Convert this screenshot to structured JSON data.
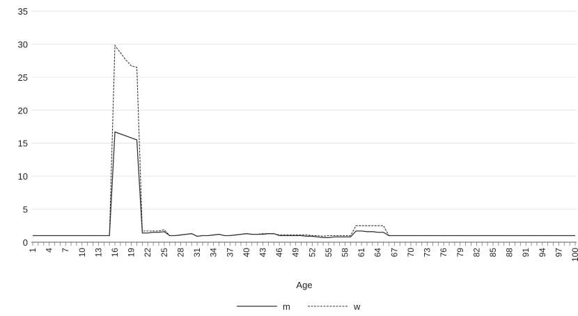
{
  "chart_data": {
    "type": "line",
    "xlabel": "Age",
    "ylabel": "",
    "title": "",
    "xlim": [
      1,
      100
    ],
    "ylim": [
      0,
      35
    ],
    "y_ticks": [
      0,
      5,
      10,
      15,
      20,
      25,
      30,
      35
    ],
    "x_tick_labels": [
      "1",
      "4",
      "7",
      "10",
      "13",
      "16",
      "19",
      "22",
      "25",
      "28",
      "31",
      "34",
      "37",
      "40",
      "43",
      "46",
      "49",
      "52",
      "55",
      "58",
      "61",
      "64",
      "67",
      "70",
      "73",
      "76",
      "79",
      "82",
      "85",
      "88",
      "91",
      "94",
      "97",
      "100"
    ],
    "grid": "horizontal",
    "legend_position": "bottom",
    "series": [
      {
        "name": "m",
        "style": "solid",
        "color": "#333333",
        "points": [
          [
            1,
            1
          ],
          [
            15,
            1
          ],
          [
            16,
            16.7
          ],
          [
            18,
            16.1
          ],
          [
            19,
            15.8
          ],
          [
            20,
            15.5
          ],
          [
            21,
            1.4
          ],
          [
            22,
            1.4
          ],
          [
            23,
            1.5
          ],
          [
            24,
            1.5
          ],
          [
            25,
            1.6
          ],
          [
            26,
            1.0
          ],
          [
            27,
            1.0
          ],
          [
            28,
            1.1
          ],
          [
            29,
            1.2
          ],
          [
            30,
            1.3
          ],
          [
            31,
            0.9
          ],
          [
            32,
            1.0
          ],
          [
            33,
            1.0
          ],
          [
            34,
            1.1
          ],
          [
            35,
            1.2
          ],
          [
            36,
            1.0
          ],
          [
            37,
            1.0
          ],
          [
            38,
            1.1
          ],
          [
            39,
            1.2
          ],
          [
            40,
            1.3
          ],
          [
            41,
            1.2
          ],
          [
            42,
            1.2
          ],
          [
            43,
            1.2
          ],
          [
            44,
            1.3
          ],
          [
            45,
            1.3
          ],
          [
            46,
            1.0
          ],
          [
            47,
            1.0
          ],
          [
            48,
            1.0
          ],
          [
            49,
            1.0
          ],
          [
            50,
            1.0
          ],
          [
            51,
            0.9
          ],
          [
            52,
            0.9
          ],
          [
            53,
            0.8
          ],
          [
            54,
            0.7
          ],
          [
            55,
            0.7
          ],
          [
            56,
            0.8
          ],
          [
            57,
            0.8
          ],
          [
            58,
            0.8
          ],
          [
            59,
            0.8
          ],
          [
            60,
            1.7
          ],
          [
            61,
            1.7
          ],
          [
            62,
            1.6
          ],
          [
            63,
            1.6
          ],
          [
            64,
            1.5
          ],
          [
            65,
            1.5
          ],
          [
            66,
            1
          ],
          [
            100,
            1
          ]
        ]
      },
      {
        "name": "w",
        "style": "dashed",
        "color": "#333333",
        "points": [
          [
            1,
            1
          ],
          [
            15,
            1
          ],
          [
            16,
            29.8
          ],
          [
            18,
            27.6
          ],
          [
            19,
            26.7
          ],
          [
            20,
            26.5
          ],
          [
            21,
            1.7
          ],
          [
            22,
            1.7
          ],
          [
            23,
            1.7
          ],
          [
            24,
            1.7
          ],
          [
            25,
            1.9
          ],
          [
            26,
            1.0
          ],
          [
            27,
            1.0
          ],
          [
            28,
            1.1
          ],
          [
            29,
            1.2
          ],
          [
            30,
            1.3
          ],
          [
            31,
            0.9
          ],
          [
            32,
            1.0
          ],
          [
            33,
            1.0
          ],
          [
            34,
            1.1
          ],
          [
            35,
            1.2
          ],
          [
            36,
            1.0
          ],
          [
            37,
            1.0
          ],
          [
            38,
            1.1
          ],
          [
            39,
            1.2
          ],
          [
            40,
            1.3
          ],
          [
            41,
            1.2
          ],
          [
            42,
            1.2
          ],
          [
            43,
            1.3
          ],
          [
            44,
            1.3
          ],
          [
            45,
            1.3
          ],
          [
            46,
            1.1
          ],
          [
            47,
            1.1
          ],
          [
            48,
            1.1
          ],
          [
            49,
            1.1
          ],
          [
            50,
            1.1
          ],
          [
            51,
            1.1
          ],
          [
            52,
            1.0
          ],
          [
            53,
            1.0
          ],
          [
            54,
            0.9
          ],
          [
            55,
            1.0
          ],
          [
            56,
            1.0
          ],
          [
            57,
            1.0
          ],
          [
            58,
            1.0
          ],
          [
            59,
            1.0
          ],
          [
            60,
            2.5
          ],
          [
            61,
            2.5
          ],
          [
            62,
            2.5
          ],
          [
            63,
            2.5
          ],
          [
            64,
            2.5
          ],
          [
            65,
            2.5
          ],
          [
            66,
            1
          ],
          [
            100,
            1
          ]
        ]
      }
    ]
  }
}
